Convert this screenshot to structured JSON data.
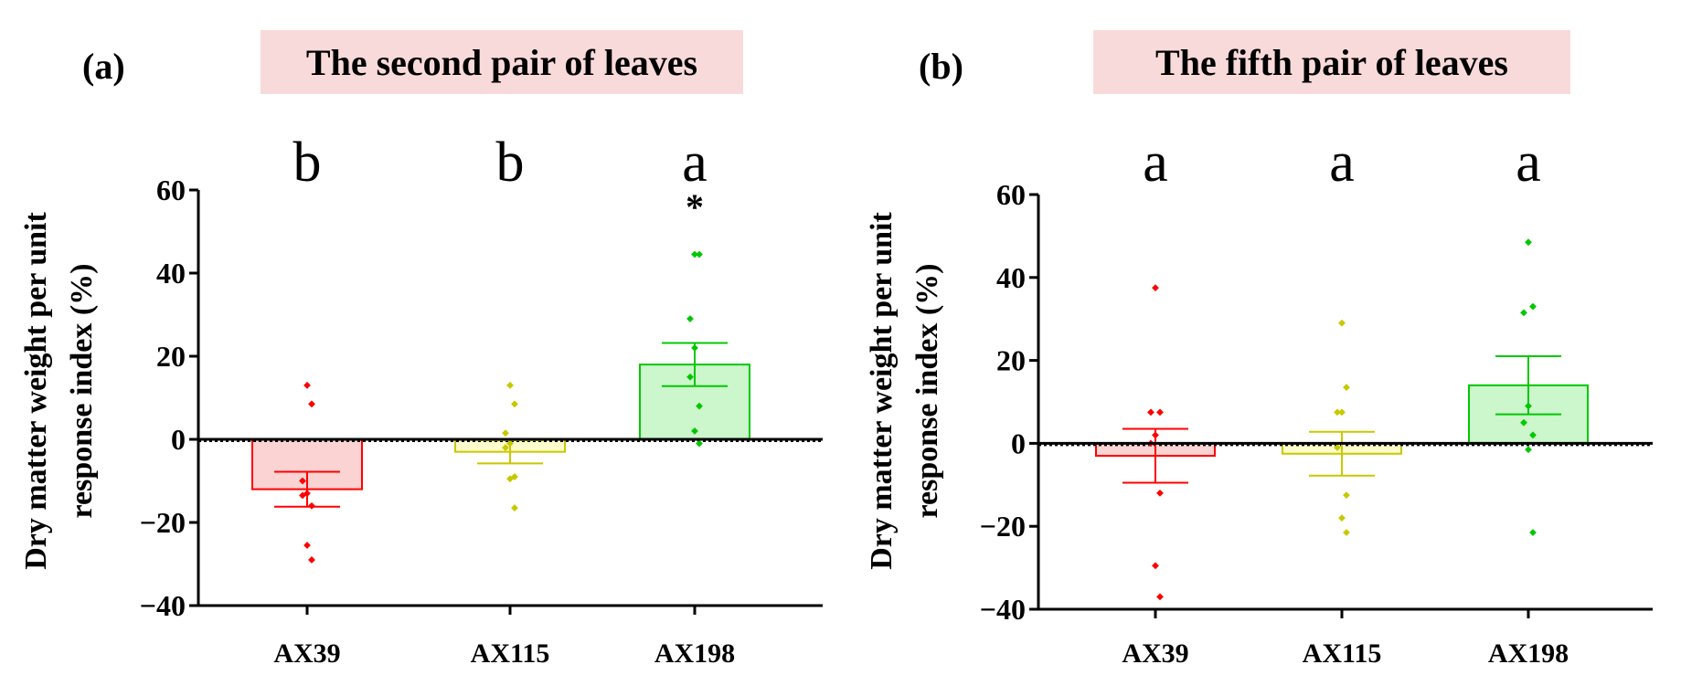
{
  "chart_data": [
    {
      "type": "bar",
      "panel_tag": "(a)",
      "title": "The second pair of leaves",
      "title_bg": "#f9dada",
      "ylabel_lines": [
        "Dry matter weight per unit",
        "response index (%)"
      ],
      "ylim": [
        -40,
        60
      ],
      "yticks": [
        60,
        40,
        20,
        0,
        -20,
        -40
      ],
      "yticks_text": [
        "60",
        "40",
        "20",
        "0",
        "−20",
        "−40"
      ],
      "categories": [
        "AX39",
        "AX115",
        "AX198"
      ],
      "values": [
        -12,
        -3,
        18
      ],
      "error": [
        4.2,
        2.8,
        5.2
      ],
      "significance": [
        "b",
        "b",
        "a"
      ],
      "stars": [
        "",
        "",
        "*"
      ],
      "points": [
        [
          13,
          8.5,
          -10,
          -13,
          -13.5,
          -16,
          -25.5,
          -29
        ],
        [
          13,
          8.5,
          1.5,
          -1,
          -2,
          -9,
          -9.5,
          -16.5
        ],
        [
          44.5,
          44.5,
          29,
          22,
          15,
          8,
          2,
          -1
        ]
      ],
      "colors": [
        "#ff0000",
        "#c8c800",
        "#00c800"
      ],
      "fills": [
        "#fbd3d3",
        "#fbfbcc",
        "#ccf6cc"
      ]
    },
    {
      "type": "bar",
      "panel_tag": "(b)",
      "title": "The fifth pair of leaves",
      "title_bg": "#f9dada",
      "ylabel_lines": [
        "Dry matter weight per unit",
        "response index (%)"
      ],
      "ylim": [
        -40,
        60
      ],
      "yticks": [
        60,
        40,
        20,
        0,
        -20,
        -40
      ],
      "yticks_text": [
        "60",
        "40",
        "20",
        "0",
        "−20",
        "−40"
      ],
      "categories": [
        "AX39",
        "AX115",
        "AX198"
      ],
      "values": [
        -3,
        -2.5,
        14
      ],
      "error": [
        6.5,
        5.3,
        7
      ],
      "significance": [
        "a",
        "a",
        "a"
      ],
      "stars": [
        "",
        "",
        ""
      ],
      "points": [
        [
          37.5,
          7.5,
          7.5,
          2,
          0,
          -12,
          -29.5,
          -37
        ],
        [
          29,
          13.5,
          7.5,
          7.5,
          -1,
          -12.5,
          -18,
          -21.5
        ],
        [
          48.5,
          33,
          31.5,
          9,
          5,
          2,
          -1.5,
          -21.5
        ]
      ],
      "colors": [
        "#ff0000",
        "#c8c800",
        "#00c800"
      ],
      "fills": [
        "#fbd3d3",
        "#fbfbcc",
        "#ccf6cc"
      ]
    }
  ]
}
